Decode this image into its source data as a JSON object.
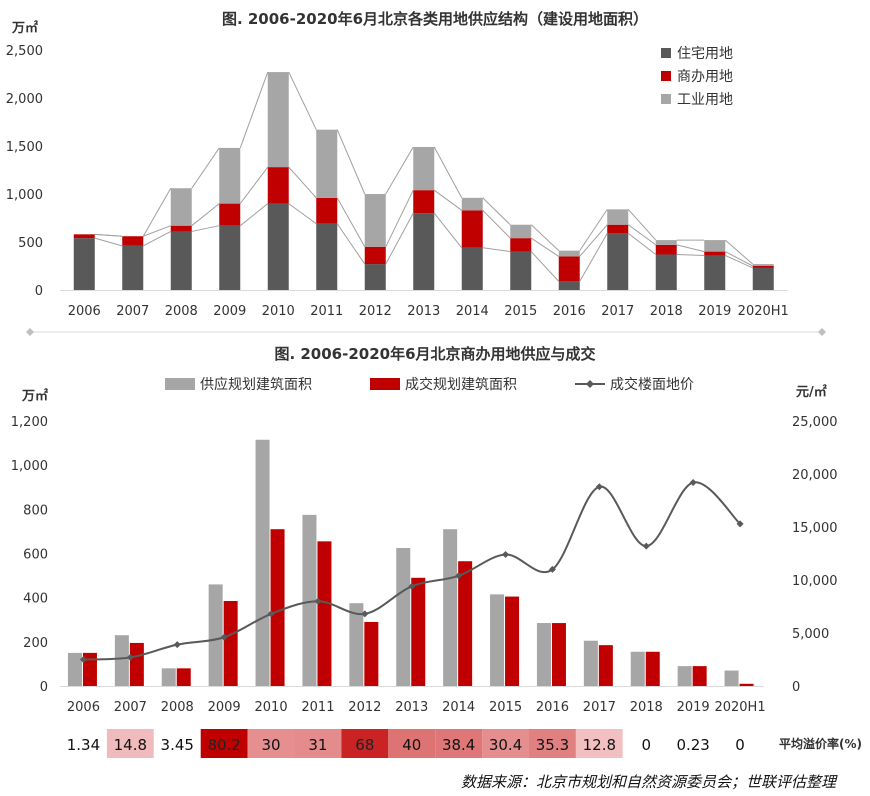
{
  "source": "数据来源：北京市规划和自然资源委员会；世联评估整理",
  "colors": {
    "residential": "#595959",
    "commercial": "#c00000",
    "industrial": "#a6a6a6",
    "price_line": "#595959",
    "premium_cell_high": "#c00000",
    "premium_cell_low": "#fbe5e6"
  },
  "chart_data": [
    {
      "type": "bar",
      "stacked": true,
      "title": "图. 2006-2020年6月北京各类用地供应结构（建设用地面积）",
      "ylabel": "万㎡",
      "ylim": [
        0,
        2500
      ],
      "yticks": [
        "0",
        "500",
        "1,000",
        "1,500",
        "2,000",
        "2,500"
      ],
      "ytick_values": [
        0,
        500,
        1000,
        1500,
        2000,
        2500
      ],
      "grid": false,
      "legend_position": "top-right",
      "connector_lines": true,
      "categories": [
        "2006",
        "2007",
        "2008",
        "2009",
        "2010",
        "2011",
        "2012",
        "2013",
        "2014",
        "2015",
        "2016",
        "2017",
        "2018",
        "2019",
        "2020H1"
      ],
      "series": [
        {
          "name": "住宅用地",
          "color": "#595959",
          "values": [
            540,
            460,
            610,
            670,
            900,
            690,
            270,
            800,
            440,
            400,
            90,
            590,
            370,
            360,
            230
          ]
        },
        {
          "name": "商办用地",
          "color": "#c00000",
          "values": [
            40,
            100,
            60,
            230,
            380,
            270,
            180,
            240,
            390,
            140,
            260,
            90,
            100,
            40,
            20
          ]
        },
        {
          "name": "工业用地",
          "color": "#a6a6a6",
          "values": [
            0,
            0,
            390,
            580,
            990,
            710,
            550,
            450,
            130,
            140,
            60,
            160,
            50,
            120,
            20
          ]
        }
      ]
    },
    {
      "type": "bar",
      "title": "图. 2006-2020年6月北京商办用地供应与成交",
      "ylabel": "万㎡",
      "ylim": [
        0,
        1200
      ],
      "yticks": [
        "0",
        "200",
        "400",
        "600",
        "800",
        "1,000",
        "1,200"
      ],
      "ytick_values": [
        0,
        200,
        400,
        600,
        800,
        1000,
        1200
      ],
      "y2label": "元/㎡",
      "y2lim": [
        0,
        25000
      ],
      "y2ticks": [
        "0",
        "5,000",
        "10,000",
        "15,000",
        "20,000",
        "25,000"
      ],
      "y2tick_values": [
        0,
        5000,
        10000,
        15000,
        20000,
        25000
      ],
      "grid": false,
      "legend_position": "top",
      "categories": [
        "2006",
        "2007",
        "2008",
        "2009",
        "2010",
        "2011",
        "2012",
        "2013",
        "2014",
        "2015",
        "2016",
        "2017",
        "2018",
        "2019",
        "2020H1"
      ],
      "series": [
        {
          "name": "供应规划建筑面积",
          "color": "#a6a6a6",
          "kind": "bar",
          "values": [
            150,
            230,
            80,
            460,
            1115,
            775,
            375,
            625,
            710,
            415,
            285,
            205,
            155,
            90,
            70
          ]
        },
        {
          "name": "成交规划建筑面积",
          "color": "#c00000",
          "kind": "bar",
          "values": [
            150,
            195,
            80,
            385,
            710,
            655,
            290,
            490,
            565,
            405,
            285,
            185,
            155,
            90,
            10
          ]
        },
        {
          "name": "成交楼面地价",
          "color": "#595959",
          "kind": "line",
          "axis": "right",
          "values": [
            2500,
            2700,
            3900,
            4600,
            6800,
            8000,
            6800,
            9400,
            10400,
            12400,
            11000,
            18800,
            13200,
            19200,
            15300
          ]
        }
      ],
      "table": {
        "label": "平均溢价率(%)",
        "values": [
          "1.34",
          "14.8",
          "3.45",
          "80.2",
          "30",
          "31",
          "68",
          "40",
          "38.4",
          "30.4",
          "35.3",
          "12.8",
          "0",
          "0.23",
          "0"
        ]
      }
    }
  ]
}
